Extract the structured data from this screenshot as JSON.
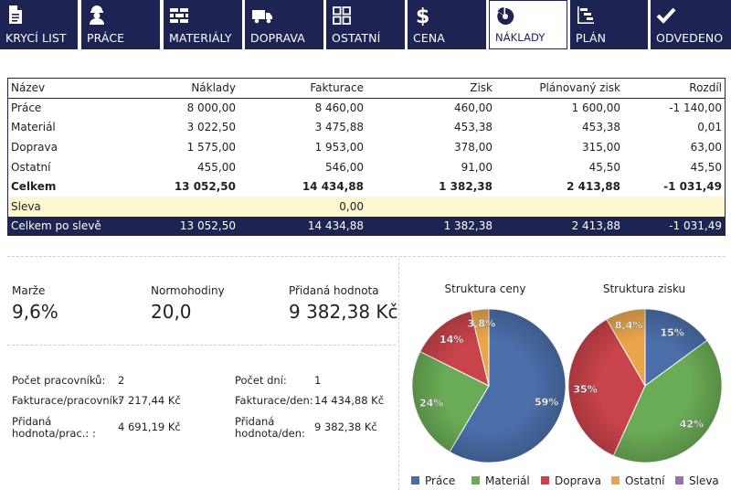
{
  "nav": [
    {
      "label": "KRYCÍ LIST",
      "icon": "document-icon"
    },
    {
      "label": "PRÁCE",
      "icon": "worker-icon"
    },
    {
      "label": "MATERIÁLY",
      "icon": "bricks-icon"
    },
    {
      "label": "DOPRAVA",
      "icon": "truck-icon"
    },
    {
      "label": "OSTATNÍ",
      "icon": "grid-icon"
    },
    {
      "label": "CENA",
      "icon": "dollar-icon"
    },
    {
      "label": "NÁKLADY",
      "icon": "pie-chart-icon",
      "active": true
    },
    {
      "label": "PLÁN",
      "icon": "gantt-icon"
    },
    {
      "label": "ODVEDENO",
      "icon": "checkmark-icon"
    }
  ],
  "table": {
    "headers": [
      "Název",
      "Náklady",
      "Fakturace",
      "Zisk",
      "Plánovaný zisk",
      "Rozdíl"
    ],
    "rows": [
      [
        "Práce",
        "8 000,00",
        "8 460,00",
        "460,00",
        "1 600,00",
        "-1 140,00"
      ],
      [
        "Materiál",
        "3 022,50",
        "3 475,88",
        "453,38",
        "453,38",
        "0,01"
      ],
      [
        "Doprava",
        "1 575,00",
        "1 953,00",
        "378,00",
        "315,00",
        "63,00"
      ],
      [
        "Ostatní",
        "455,00",
        "546,00",
        "91,00",
        "45,50",
        "45,50"
      ]
    ],
    "total": [
      "Celkem",
      "13 052,50",
      "14 434,88",
      "1 382,38",
      "2 413,88",
      "-1 031,49"
    ],
    "discount": [
      "Sleva",
      "",
      "0,00",
      "",
      "",
      ""
    ],
    "final": [
      "Celkem po slevě",
      "13 052,50",
      "14 434,88",
      "1 382,38",
      "2 413,88",
      "-1 031,49"
    ]
  },
  "kpis": {
    "marze": {
      "label": "Marže",
      "value": "9,6%"
    },
    "normohodiny": {
      "label": "Normohodiny",
      "value": "20,0"
    },
    "pridana": {
      "label": "Přidaná hodnota",
      "value": "9 382,38 Kč"
    }
  },
  "stats": {
    "pocet_pracovniku": {
      "label": "Počet pracovníků:",
      "value": "2"
    },
    "fakturace_pracovnik": {
      "label": "Fakturace/pracovník:",
      "value": "7 217,44 Kč"
    },
    "pridana_prac": {
      "label": "Přidaná hodnota/prac.: :",
      "value": "4 691,19 Kč"
    },
    "pocet_dni": {
      "label": "Počet dní:",
      "value": "1"
    },
    "fakturace_den": {
      "label": "Fakturace/den:",
      "value": "14 434,88 Kč"
    },
    "pridana_den": {
      "label": "Přidaná hodnota/den:",
      "value": "9 382,38 Kč"
    }
  },
  "chart_data": [
    {
      "type": "pie",
      "title": "Struktura ceny",
      "categories": [
        "Práce",
        "Materiál",
        "Doprava",
        "Ostatní",
        "Sleva"
      ],
      "values": [
        59,
        24,
        14,
        3.8,
        0
      ],
      "labels": [
        "59%",
        "24%",
        "14%",
        "3,8%",
        ""
      ]
    },
    {
      "type": "pie",
      "title": "Struktura zisku",
      "categories": [
        "Práce",
        "Materiál",
        "Doprava",
        "Ostatní",
        "Sleva"
      ],
      "values": [
        15,
        42,
        35,
        8.4,
        0
      ],
      "labels": [
        "15%",
        "42%",
        "35%",
        "8,4%",
        ""
      ]
    }
  ],
  "legend": [
    {
      "label": "Práce",
      "color": "#4a6ea8"
    },
    {
      "label": "Materiál",
      "color": "#6aab55"
    },
    {
      "label": "Doprava",
      "color": "#c9434a"
    },
    {
      "label": "Ostatní",
      "color": "#eaa54a"
    },
    {
      "label": "Sleva",
      "color": "#9b6fb4"
    }
  ]
}
